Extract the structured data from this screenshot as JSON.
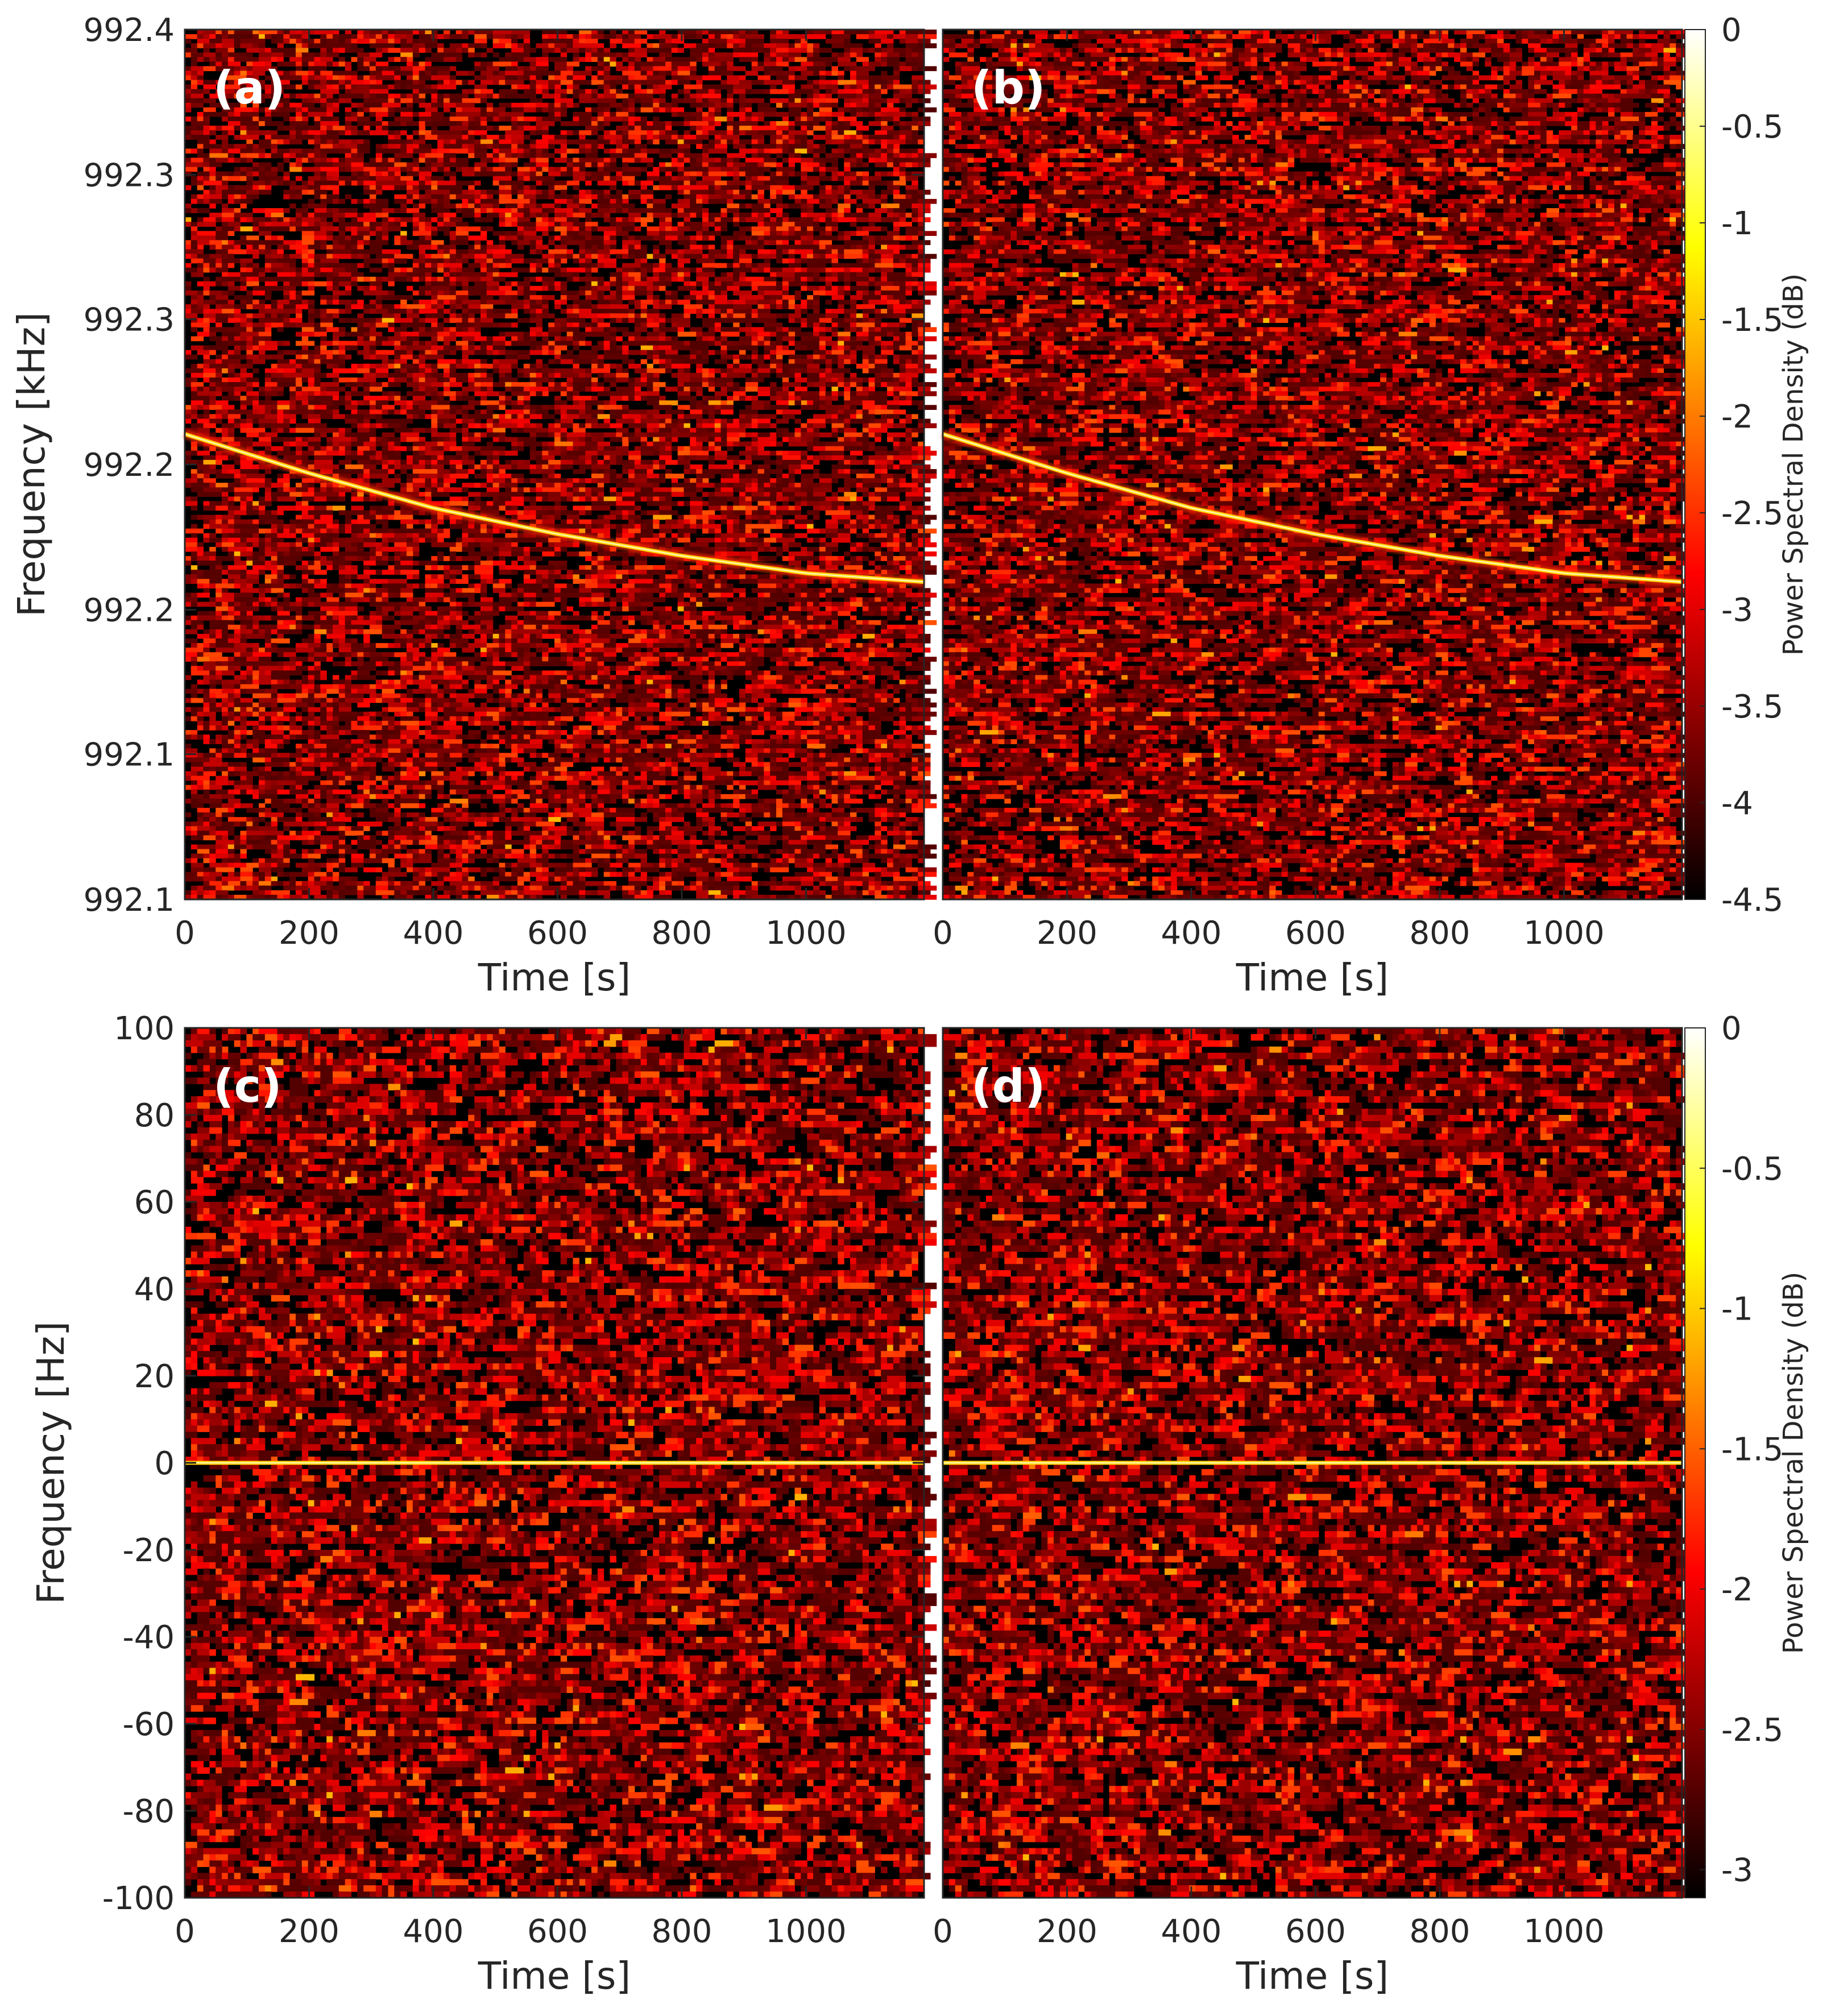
{
  "chart_data": [
    {
      "panel": "(a)",
      "type": "heatmap",
      "colormap": "hot",
      "xlabel": "Time [s]",
      "ylabel": "Frequency [kHz]",
      "xlim": [
        0,
        1190
      ],
      "xticks": [
        0,
        200,
        400,
        600,
        800,
        1000
      ],
      "xtick_labels": [
        "0",
        "200",
        "400",
        "600",
        "800",
        "1000"
      ],
      "yticks_norm": [
        0,
        0.167,
        0.333,
        0.5,
        0.667,
        0.833,
        1
      ],
      "ytick_labels": [
        "992.1",
        "992.1",
        "992.2",
        "992.2",
        "992.3",
        "992.3",
        "992.4"
      ],
      "trace": {
        "description": "bright decreasing Doppler trace",
        "x": [
          0,
          200,
          400,
          600,
          800,
          1000,
          1190
        ],
        "y_norm": [
          0.535,
          0.49,
          0.45,
          0.42,
          0.395,
          0.375,
          0.365
        ]
      },
      "clim": [
        -4.5,
        0
      ]
    },
    {
      "panel": "(b)",
      "type": "heatmap",
      "colormap": "hot",
      "xlabel": "Time [s]",
      "ylabel": "",
      "xlim": [
        0,
        1190
      ],
      "xticks": [
        0,
        200,
        400,
        600,
        800,
        1000
      ],
      "xtick_labels": [
        "0",
        "200",
        "400",
        "600",
        "800",
        "1000"
      ],
      "trace": {
        "description": "bright decreasing Doppler trace",
        "x": [
          0,
          200,
          400,
          600,
          800,
          1000,
          1190
        ],
        "y_norm": [
          0.535,
          0.49,
          0.45,
          0.42,
          0.395,
          0.375,
          0.365
        ]
      },
      "colorbar": {
        "label": "Power Spectral Density (dB)",
        "ticks": [
          0,
          -0.5,
          -1,
          -1.5,
          -2,
          -2.5,
          -3,
          -3.5,
          -4,
          -4.5
        ],
        "tick_labels": [
          "0",
          "-0.5",
          "-1",
          "-1.5",
          "-2",
          "-2.5",
          "-3",
          "-3.5",
          "-4",
          "-4.5"
        ]
      },
      "clim": [
        -4.5,
        0
      ]
    },
    {
      "panel": "(c)",
      "type": "heatmap",
      "colormap": "hot",
      "xlabel": "Time [s]",
      "ylabel": "Frequency [Hz]",
      "xlim": [
        0,
        1190
      ],
      "ylim": [
        -100,
        100
      ],
      "xticks": [
        0,
        200,
        400,
        600,
        800,
        1000
      ],
      "xtick_labels": [
        "0",
        "200",
        "400",
        "600",
        "800",
        "1000"
      ],
      "yticks": [
        100,
        80,
        60,
        40,
        20,
        0,
        -20,
        -40,
        -60,
        -80,
        -100
      ],
      "ytick_labels": [
        "100",
        "80",
        "60",
        "40",
        "20",
        "0",
        "-20",
        "-40",
        "-60",
        "-80",
        "-100"
      ],
      "trace": {
        "description": "flat residual trace at 0 Hz",
        "x": [
          0,
          1190
        ],
        "y": [
          0,
          0
        ]
      },
      "clim": [
        -3.1,
        0
      ]
    },
    {
      "panel": "(d)",
      "type": "heatmap",
      "colormap": "hot",
      "xlabel": "Time [s]",
      "ylabel": "",
      "xlim": [
        0,
        1190
      ],
      "ylim": [
        -100,
        100
      ],
      "xticks": [
        0,
        200,
        400,
        600,
        800,
        1000
      ],
      "xtick_labels": [
        "0",
        "200",
        "400",
        "600",
        "800",
        "1000"
      ],
      "trace": {
        "description": "flat residual trace at 0 Hz",
        "x": [
          0,
          1190
        ],
        "y": [
          0,
          0
        ]
      },
      "colorbar": {
        "label": "Power Spectral Density (dB)",
        "ticks": [
          0,
          -0.5,
          -1,
          -1.5,
          -2,
          -2.5,
          -3
        ],
        "tick_labels": [
          "0",
          "-0.5",
          "-1",
          "-1.5",
          "-2",
          "-2.5",
          "-3"
        ]
      },
      "clim": [
        -3.1,
        0
      ]
    }
  ]
}
